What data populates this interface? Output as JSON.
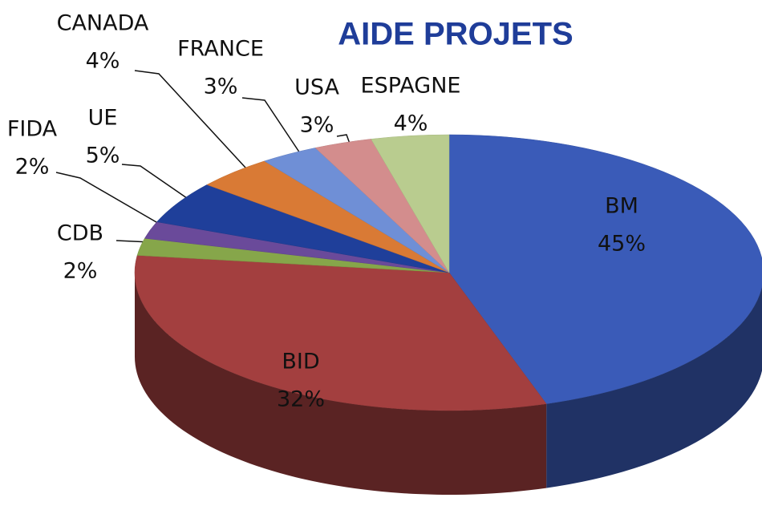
{
  "chart_data": {
    "type": "pie",
    "title": "AIDE PROJETS",
    "categories": [
      "BM",
      "BID",
      "CDB",
      "FIDA",
      "UE",
      "CANADA",
      "FRANCE",
      "USA",
      "ESPAGNE"
    ],
    "values": [
      45,
      32,
      2,
      2,
      5,
      4,
      3,
      3,
      4
    ],
    "value_labels": [
      "45%",
      "32%",
      "2%",
      "2%",
      "5%",
      "4%",
      "3%",
      "3%",
      "4%"
    ],
    "colors": [
      "#3a5bb8",
      "#a33f3f",
      "#86a64a",
      "#6a4a9a",
      "#1f3f9a",
      "#d97a35",
      "#6f8fd6",
      "#d38d8d",
      "#b9cc8f"
    ]
  }
}
